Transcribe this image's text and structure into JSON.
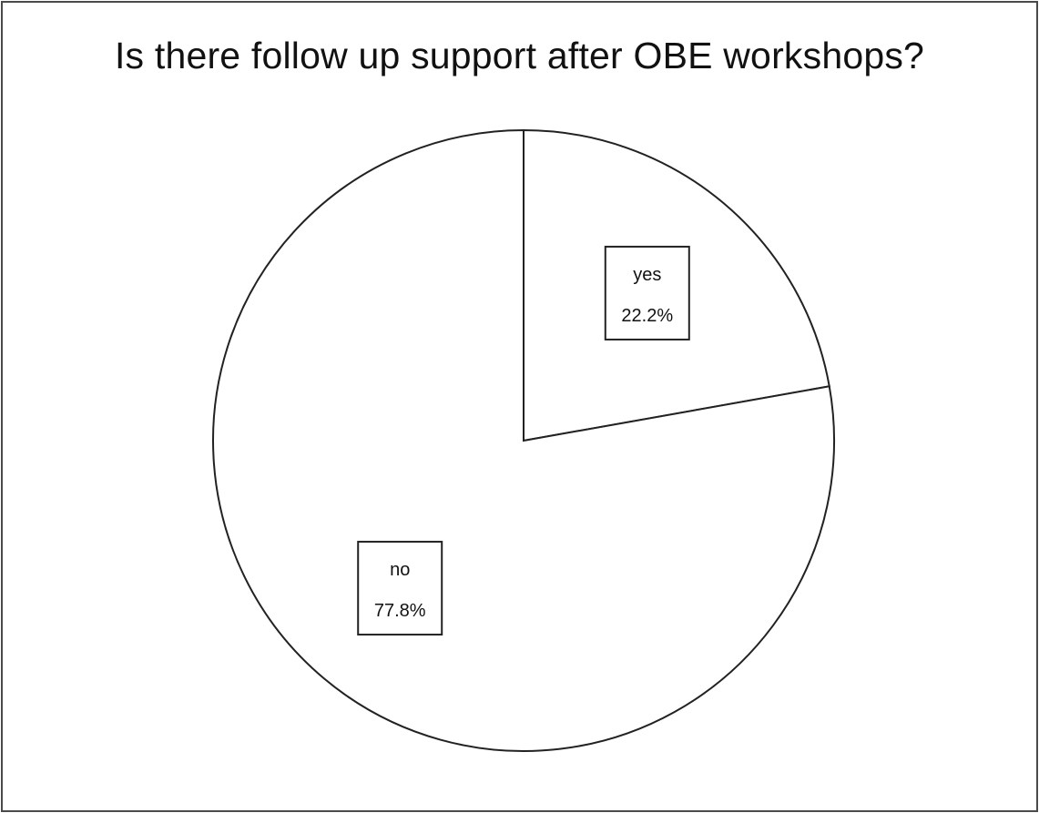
{
  "chart_data": {
    "type": "pie",
    "title": "Is there follow up support after OBE workshops?",
    "slices": [
      {
        "label": "yes",
        "value": 22.2,
        "value_label": "22.2%"
      },
      {
        "label": "no",
        "value": 77.8,
        "value_label": "77.8%"
      }
    ],
    "start_angle_deg": 0,
    "direction": "clockwise",
    "legend": "none",
    "colors": {
      "fill": "#ffffff",
      "stroke": "#222222"
    }
  }
}
